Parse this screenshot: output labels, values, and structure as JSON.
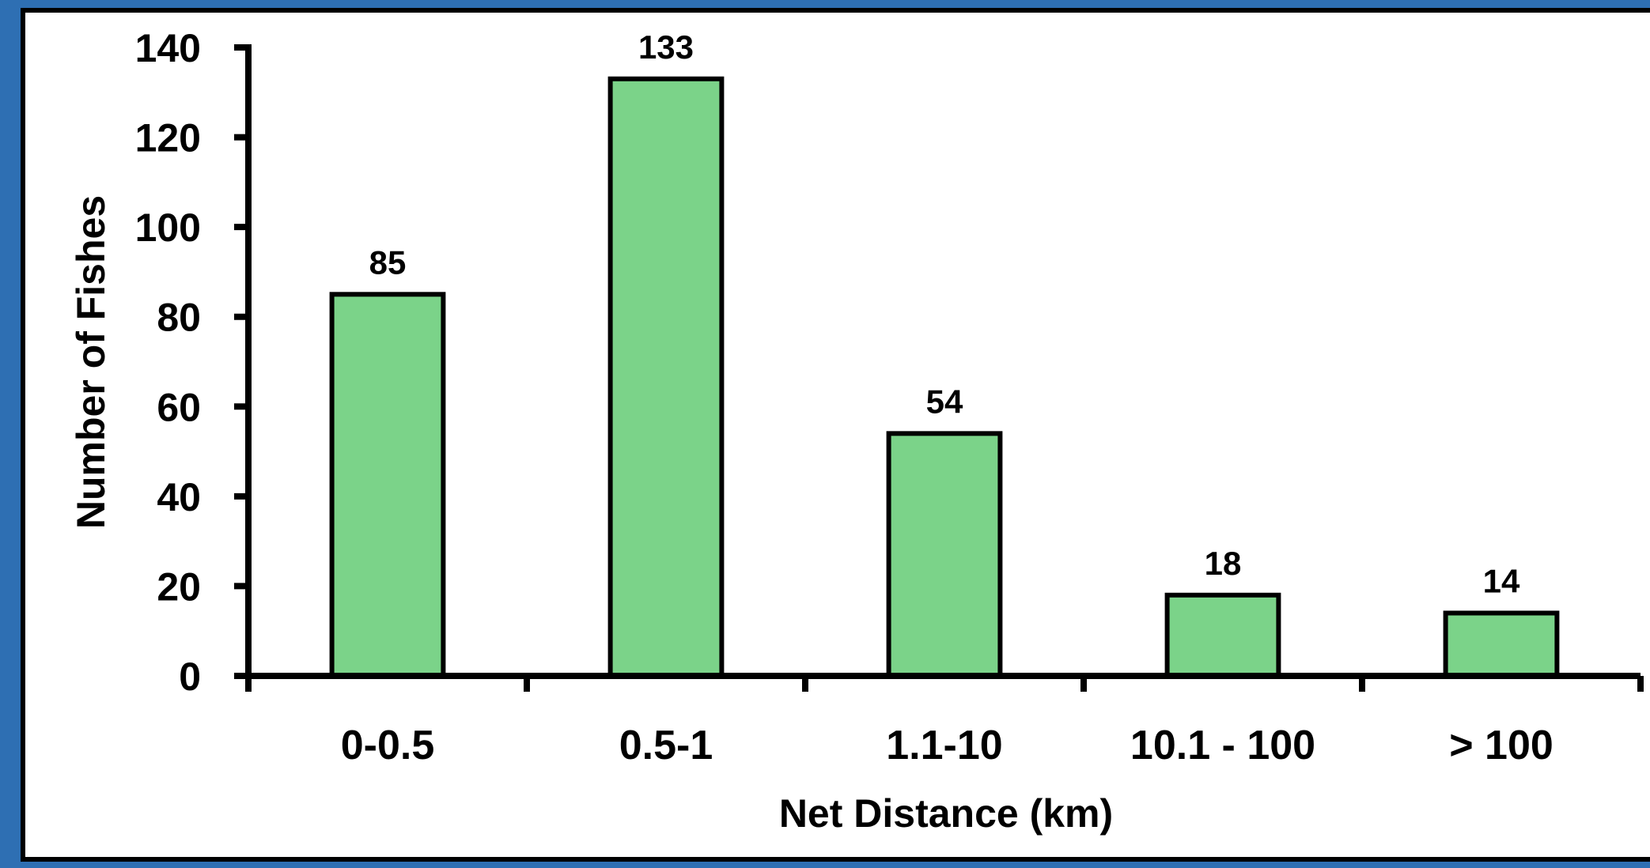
{
  "chart_data": {
    "type": "bar",
    "title": "",
    "xlabel": "Net Distance (km)",
    "ylabel": "Number of Fishes",
    "categories": [
      "0-0.5",
      "0.5-1",
      "1.1-10",
      "10.1 - 100",
      "> 100"
    ],
    "values": [
      85,
      133,
      54,
      18,
      14
    ],
    "data_labels": [
      "85",
      "133",
      "54",
      "18",
      "14"
    ],
    "ylim": [
      0,
      140
    ],
    "yticks": [
      0,
      20,
      40,
      60,
      80,
      100,
      120,
      140
    ],
    "grid": false,
    "legend": "none",
    "colors": {
      "bar_fill": "#7bd389",
      "bar_stroke": "#000000",
      "axis": "#000000",
      "frame_bg": "#2e6fb3"
    }
  }
}
